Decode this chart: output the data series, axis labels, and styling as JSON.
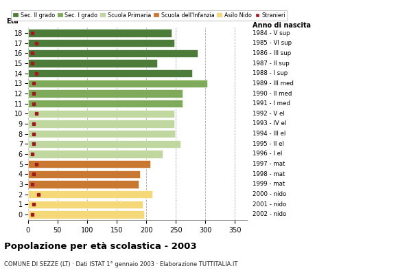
{
  "ages": [
    18,
    17,
    16,
    15,
    14,
    13,
    12,
    11,
    10,
    9,
    8,
    7,
    6,
    5,
    4,
    3,
    2,
    1,
    0
  ],
  "values": [
    243,
    248,
    287,
    218,
    278,
    303,
    262,
    262,
    247,
    247,
    249,
    258,
    228,
    207,
    190,
    187,
    210,
    194,
    196
  ],
  "stranieri": [
    7,
    14,
    8,
    8,
    14,
    10,
    10,
    10,
    14,
    10,
    10,
    10,
    8,
    14,
    10,
    8,
    18,
    10,
    8
  ],
  "anno_nascita": [
    "1984 - V sup",
    "1985 - VI sup",
    "1986 - III sup",
    "1987 - II sup",
    "1988 - I sup",
    "1989 - III med",
    "1990 - II med",
    "1991 - I med",
    "1992 - V el",
    "1993 - IV el",
    "1994 - III el",
    "1995 - II el",
    "1996 - I el",
    "1997 - mat",
    "1998 - mat",
    "1999 - mat",
    "2000 - nido",
    "2001 - nido",
    "2002 - nido"
  ],
  "colors": {
    "sec2": "#4d7c3a",
    "sec1": "#7faa5a",
    "primaria": "#c0d8a0",
    "infanzia": "#c87830",
    "nido": "#f5d878",
    "stranieri": "#a01820"
  },
  "bar_colors": [
    "sec2",
    "sec2",
    "sec2",
    "sec2",
    "sec2",
    "sec1",
    "sec1",
    "sec1",
    "primaria",
    "primaria",
    "primaria",
    "primaria",
    "primaria",
    "infanzia",
    "infanzia",
    "infanzia",
    "nido",
    "nido",
    "nido"
  ],
  "legend_labels": [
    "Sec. II grado",
    "Sec. I grado",
    "Scuola Primaria",
    "Scuola dell'Infanzia",
    "Asilo Nido",
    "Stranieri"
  ],
  "legend_colors": [
    "#4d7c3a",
    "#7faa5a",
    "#c0d8a0",
    "#c87830",
    "#f5d878",
    "#a01820"
  ],
  "title": "Popolazione per età scolastica - 2003",
  "subtitle": "COMUNE DI SEZZE (LT) · Dati ISTAT 1° gennaio 2003 · Elaborazione TUTTITALIA.IT",
  "xlabel_eta": "Età",
  "xlabel_anno": "Anno di nascita",
  "xlim": [
    0,
    370
  ],
  "xticks": [
    0,
    50,
    100,
    150,
    200,
    250,
    300,
    350
  ],
  "background": "#ffffff",
  "bar_height": 0.78
}
